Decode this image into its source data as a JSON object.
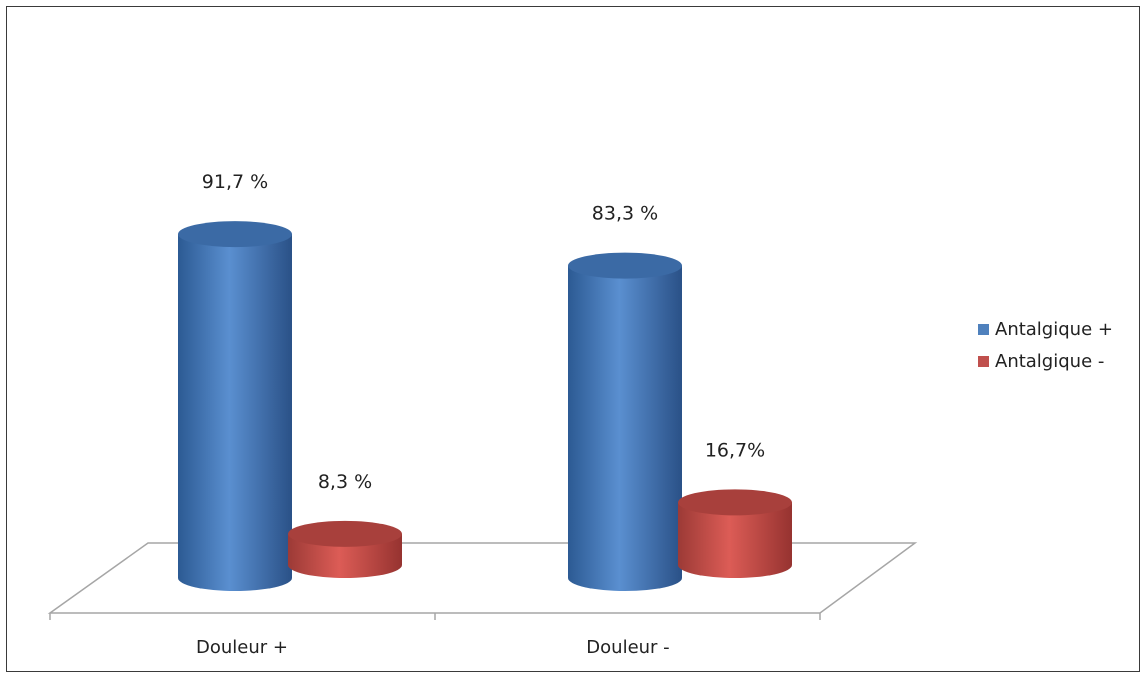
{
  "chart_data": {
    "type": "bar",
    "categories": [
      "Douleur +",
      "Douleur -"
    ],
    "series": [
      {
        "name": "Antalgique +",
        "values": [
          91.7,
          83.3
        ],
        "labels": [
          "91,7 %",
          "83,3 %"
        ],
        "color": "#4f81bd"
      },
      {
        "name": "Antalgique -",
        "values": [
          8.3,
          16.7
        ],
        "labels": [
          "8,3 %",
          "16,7%"
        ],
        "color": "#c0504d"
      }
    ],
    "title": "",
    "xlabel": "",
    "ylabel": "",
    "legend_position": "right",
    "grid": false,
    "style": "3d-cylinder"
  }
}
